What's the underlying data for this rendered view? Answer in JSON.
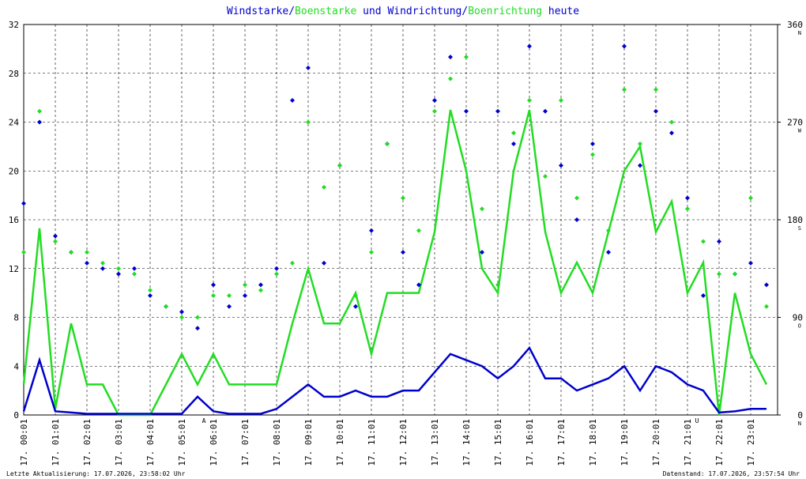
{
  "chart_data": {
    "type": "line",
    "title_parts": [
      {
        "text": "Windstarke",
        "color": "#0000cc"
      },
      {
        "text": "/",
        "color": "#0000cc"
      },
      {
        "text": "Boenstarke",
        "color": "#22dd22"
      },
      {
        "text": " und ",
        "color": "#0000cc"
      },
      {
        "text": "Windrichtung",
        "color": "#0000cc"
      },
      {
        "text": "/",
        "color": "#0000cc"
      },
      {
        "text": "Boenrichtung",
        "color": "#22dd22"
      },
      {
        "text": " heute",
        "color": "#0000cc"
      }
    ],
    "x": [
      0,
      0.5,
      1,
      1.5,
      2,
      2.5,
      3,
      3.5,
      4,
      4.5,
      5,
      5.5,
      6,
      6.5,
      7,
      7.5,
      8,
      8.5,
      9,
      9.5,
      10,
      10.5,
      11,
      11.5,
      12,
      12.5,
      13,
      13.5,
      14,
      14.5,
      15,
      15.5,
      16,
      16.5,
      17,
      17.5,
      18,
      18.5,
      19,
      19.5,
      20,
      20.5,
      21,
      21.5,
      22,
      22.5,
      23,
      23.5
    ],
    "xlim": [
      0,
      23.85
    ],
    "xticks": [
      {
        "value": 0,
        "label": "17. 00:01"
      },
      {
        "value": 1,
        "label": "17. 01:01"
      },
      {
        "value": 2,
        "label": "17. 02:01"
      },
      {
        "value": 3,
        "label": "17. 03:01"
      },
      {
        "value": 4,
        "label": "17. 04:01"
      },
      {
        "value": 5,
        "label": "17. 05:01"
      },
      {
        "value": 6,
        "label": "17. 06:01"
      },
      {
        "value": 7,
        "label": "17. 07:01"
      },
      {
        "value": 8,
        "label": "17. 08:01"
      },
      {
        "value": 9,
        "label": "17. 09:01"
      },
      {
        "value": 10,
        "label": "17. 10:01"
      },
      {
        "value": 11,
        "label": "17. 11:01"
      },
      {
        "value": 12,
        "label": "17. 12:01"
      },
      {
        "value": 13,
        "label": "17. 13:01"
      },
      {
        "value": 14,
        "label": "17. 14:01"
      },
      {
        "value": 15,
        "label": "17. 15:01"
      },
      {
        "value": 16,
        "label": "17. 16:01"
      },
      {
        "value": 17,
        "label": "17. 17:01"
      },
      {
        "value": 18,
        "label": "17. 18:01"
      },
      {
        "value": 19,
        "label": "17. 19:01"
      },
      {
        "value": 20,
        "label": "17. 20:01"
      },
      {
        "value": 21,
        "label": "17. 21:01"
      },
      {
        "value": 22,
        "label": "17. 22:01"
      },
      {
        "value": 23,
        "label": "17. 23:01"
      }
    ],
    "ylim": [
      0,
      32
    ],
    "yticks": [
      0,
      4,
      8,
      12,
      16,
      20,
      24,
      28,
      32
    ],
    "y2lim": [
      0,
      360
    ],
    "y2ticks": [
      0,
      90,
      180,
      270,
      360
    ],
    "y2tick_directions": [
      "N",
      "O",
      "S",
      "W",
      "N"
    ],
    "grid": true,
    "series": [
      {
        "kind": "line",
        "color": "#22dd22",
        "values": [
          2.5,
          15.3,
          0.5,
          7.5,
          2.5,
          2.5,
          0,
          0,
          0,
          2.5,
          5,
          2.5,
          5,
          2.5,
          2.5,
          2.5,
          2.5,
          7.5,
          12,
          7.5,
          7.5,
          10,
          5,
          10,
          10,
          10,
          15,
          25,
          20,
          12,
          10,
          20,
          25,
          15,
          10,
          12.5,
          10,
          15,
          20,
          22,
          15,
          17.5,
          10,
          12.5,
          0,
          10,
          5,
          2.5
        ]
      },
      {
        "kind": "line",
        "color": "#0000cc",
        "values": [
          0.3,
          4.5,
          0.3,
          0.2,
          0.1,
          0.1,
          0.1,
          0.1,
          0.1,
          0.1,
          0.1,
          1.5,
          0.3,
          0.1,
          0.1,
          0.1,
          0.5,
          1.5,
          2.5,
          1.5,
          1.5,
          2,
          1.5,
          1.5,
          2,
          2,
          3.5,
          5,
          4.5,
          4,
          3,
          4,
          5.5,
          3,
          3,
          2,
          2.5,
          3,
          4,
          2,
          4,
          3.5,
          2.5,
          2,
          0.2,
          0.3,
          0.5,
          0.5
        ]
      },
      {
        "kind": "scatter",
        "axis": "y2",
        "color": "#0000cc",
        "values": [
          195,
          270,
          165,
          150,
          140,
          135,
          130,
          135,
          110,
          100,
          95,
          80,
          120,
          100,
          110,
          120,
          135,
          290,
          320,
          140,
          230,
          100,
          170,
          250,
          150,
          120,
          290,
          330,
          280,
          150,
          280,
          250,
          340,
          280,
          230,
          180,
          250,
          150,
          340,
          230,
          280,
          260,
          200,
          110,
          160,
          130,
          140,
          120
        ]
      },
      {
        "kind": "scatter",
        "axis": "y2",
        "color": "#22dd22",
        "values": [
          150,
          280,
          160,
          150,
          150,
          140,
          135,
          130,
          115,
          100,
          90,
          90,
          110,
          110,
          120,
          115,
          130,
          140,
          270,
          210,
          230,
          110,
          150,
          250,
          200,
          170,
          280,
          310,
          330,
          190,
          120,
          260,
          290,
          220,
          290,
          200,
          240,
          170,
          300,
          250,
          300,
          270,
          190,
          160,
          130,
          130,
          200,
          100
        ]
      }
    ],
    "annotations": [
      {
        "text": "A",
        "x": 5.7
      },
      {
        "text": "U",
        "x": 21.3
      }
    ],
    "footer_left": "Letzte Aktualisierung: 17.07.2026, 23:58:02 Uhr",
    "footer_right": "Datenstand: 17.07.2026, 23:57:54 Uhr"
  }
}
